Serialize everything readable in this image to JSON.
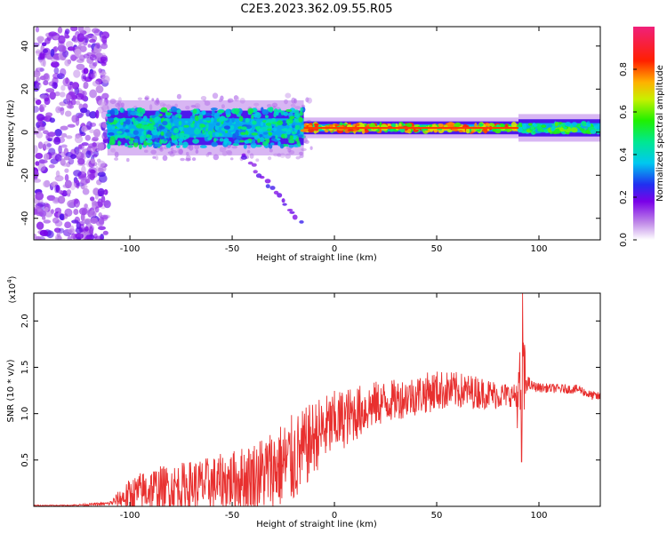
{
  "title": "C2E3.2023.362.09.55.R05",
  "chart_data": [
    {
      "type": "heatmap",
      "xlabel": "Height of straight line (km)",
      "ylabel": "Frequency (Hz)",
      "xlim": [
        -147,
        130
      ],
      "ylim": [
        -50,
        49
      ],
      "xticks": [
        -100,
        -50,
        0,
        50,
        100
      ],
      "xtick_labels": [
        "-100",
        "-50",
        "0",
        "50",
        "100"
      ],
      "yticks": [
        -40,
        -20,
        0,
        20,
        40
      ],
      "ytick_labels": [
        "-40",
        "-20",
        "0",
        "20",
        "40"
      ],
      "colorbar": {
        "label": "Normalized spectral amplitude",
        "range": [
          0,
          1
        ],
        "ticks": [
          0.0,
          0.2,
          0.4,
          0.6,
          0.8
        ],
        "tick_labels": [
          "0.0",
          "0.2",
          "0.4",
          "0.6",
          "0.8"
        ],
        "colormap": "white-purple-blue-cyan-green-yellow-red-pink"
      },
      "features": {
        "noise_region_x": [
          -147,
          -111
        ],
        "band_center_hz": 2,
        "band_regions": [
          {
            "x": [
              -111,
              -15
            ],
            "halfwidth_hz": 8,
            "intensity": 0.5
          },
          {
            "x": [
              -15,
              90
            ],
            "halfwidth_hz": 3,
            "intensity": 0.85
          },
          {
            "x": [
              90,
              130
            ],
            "halfwidth_hz": 4,
            "intensity": 0.6
          }
        ],
        "diagonal_streak": {
          "x": [
            -45,
            -17
          ],
          "y": [
            -10,
            -42
          ]
        }
      }
    },
    {
      "type": "line",
      "xlabel": "Height of straight line (km)",
      "ylabel": "SNR (10 * v/v)",
      "y_multiplier": "(x10^4)",
      "xlim": [
        -147,
        130
      ],
      "ylim": [
        0,
        2.3
      ],
      "xticks": [
        -100,
        -50,
        0,
        50,
        100
      ],
      "xtick_labels": [
        "-100",
        "-50",
        "0",
        "50",
        "100"
      ],
      "yticks": [
        0.5,
        1.0,
        1.5,
        2.0
      ],
      "ytick_labels": [
        "0.5",
        "1.0",
        "1.5",
        "2.0"
      ],
      "color": "#e8302f",
      "envelope": {
        "x": [
          -147,
          -130,
          -110,
          -105,
          -100,
          -95,
          -90,
          -80,
          -70,
          -60,
          -50,
          -40,
          -30,
          -20,
          -15,
          -10,
          0,
          10,
          20,
          30,
          40,
          50,
          60,
          70,
          80,
          88,
          90,
          92,
          94,
          96,
          100,
          110,
          120,
          125,
          130
        ],
        "base": [
          0.01,
          0.01,
          0.03,
          0.08,
          0.12,
          0.15,
          0.18,
          0.2,
          0.22,
          0.24,
          0.28,
          0.32,
          0.4,
          0.5,
          0.6,
          0.75,
          0.9,
          1.0,
          1.1,
          1.15,
          1.2,
          1.25,
          1.25,
          1.23,
          1.2,
          1.2,
          1.15,
          1.3,
          1.35,
          1.3,
          1.28,
          1.27,
          1.26,
          1.2,
          1.18
        ],
        "amplitude": [
          0.005,
          0.005,
          0.02,
          0.1,
          0.18,
          0.22,
          0.25,
          0.25,
          0.28,
          0.3,
          0.32,
          0.38,
          0.45,
          0.5,
          0.45,
          0.4,
          0.35,
          0.3,
          0.25,
          0.22,
          0.22,
          0.22,
          0.2,
          0.18,
          0.15,
          0.12,
          0.4,
          0.8,
          0.1,
          0.06,
          0.05,
          0.05,
          0.05,
          0.05,
          0.05
        ]
      },
      "spikes": [
        {
          "x": 92,
          "y": 2.3
        },
        {
          "x": 91.5,
          "y": 0.48
        }
      ]
    }
  ]
}
